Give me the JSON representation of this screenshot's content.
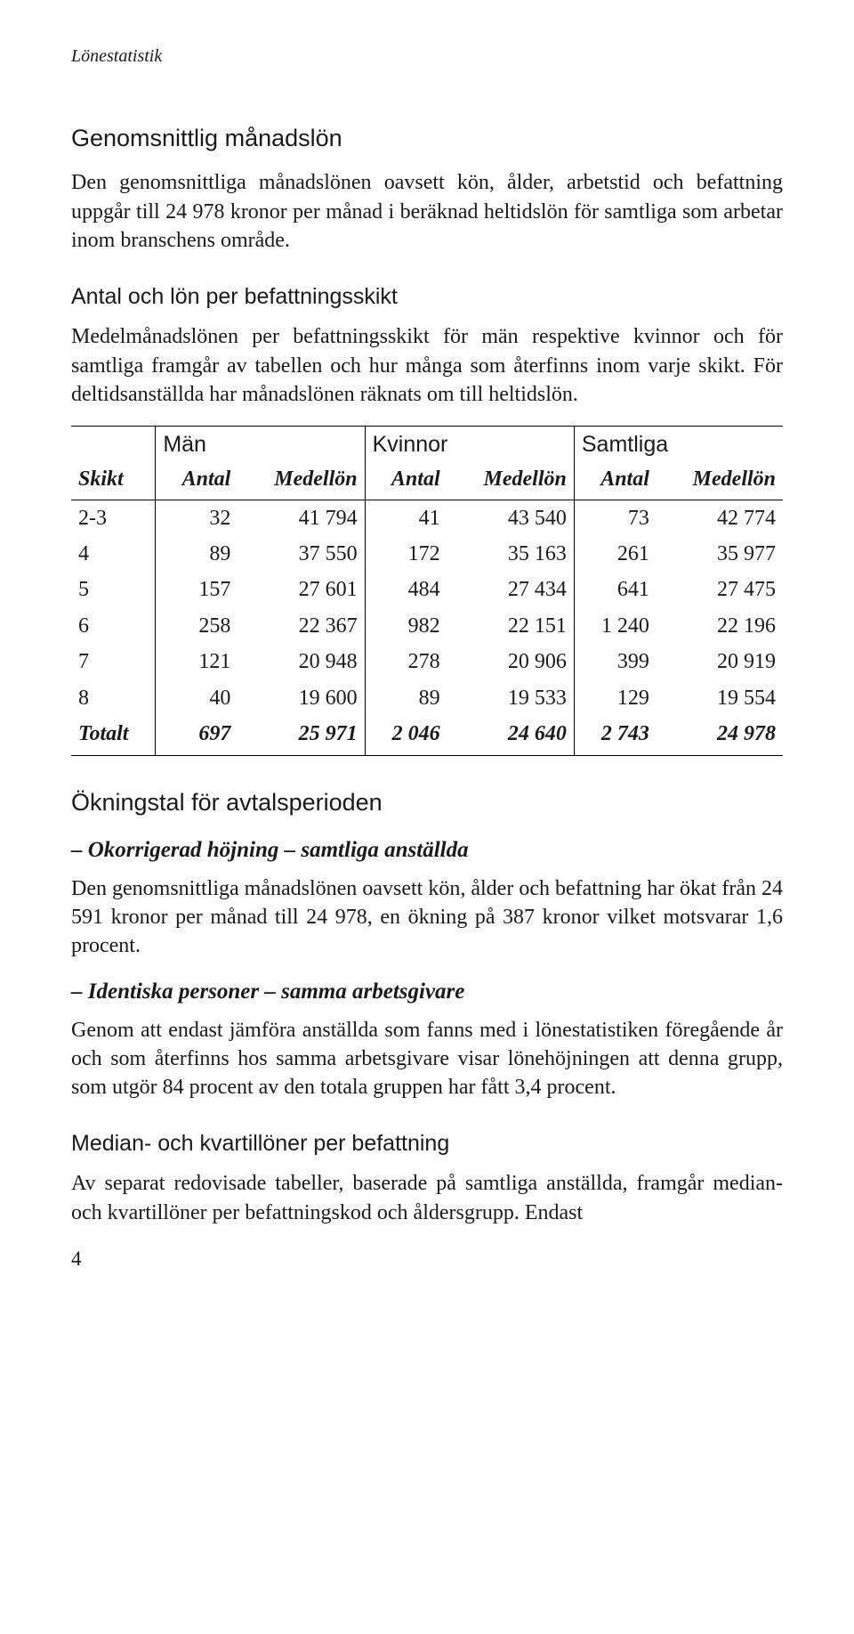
{
  "header": {
    "label": "Lönestatistik"
  },
  "sections": {
    "avg": {
      "title": "Genomsnittlig månadslön",
      "para": "Den genomsnittliga månadslönen oavsett kön, ålder, arbetstid och befattning uppgår till 24 978 kronor per månad i beräknad heltidslön för samtliga som arbetar inom branschens område."
    },
    "antal": {
      "title": "Antal och lön per befattningsskikt",
      "para": "Medelmånadslönen per befattningsskikt för män respektive kvinnor och för samtliga framgår av tabellen och hur många som återfinns inom varje skikt. För deltidsanställda har månadslönen räknats om till heltidslön."
    },
    "okning": {
      "title": "Ökningstal för avtalsperioden",
      "sub1_title": "– Okorrigerad höjning – samtliga anställda",
      "sub1_para": "Den genomsnittliga månadslönen oavsett kön, ålder och befattning har ökat från 24 591 kronor per månad till 24 978, en ökning på 387 kronor vilket motsvarar 1,6 procent.",
      "sub2_title": "– Identiska personer – samma arbetsgivare",
      "sub2_para": "Genom att endast jämföra anställda som fanns med i lönestatistiken föregående år och som återfinns hos samma arbetsgivare visar lönehöjningen att denna grupp, som utgör 84 procent av den totala gruppen har fått 3,4 procent."
    },
    "median": {
      "title": "Median- och kvartillöner per befattning",
      "para": "Av separat redovisade tabeller, baserade på samtliga anställda, framgår median- och kvartillöner per befattningskod och åldersgrupp. Endast"
    }
  },
  "table": {
    "groups": {
      "g1": "Män",
      "g2": "Kvinnor",
      "g3": "Samtliga"
    },
    "cols": {
      "skikt": "Skikt",
      "antal": "Antal",
      "medellon": "Medellön"
    },
    "rows": [
      {
        "skikt": "2-3",
        "m_antal": "32",
        "m_med": "41 794",
        "k_antal": "41",
        "k_med": "43 540",
        "s_antal": "73",
        "s_med": "42 774"
      },
      {
        "skikt": "4",
        "m_antal": "89",
        "m_med": "37 550",
        "k_antal": "172",
        "k_med": "35 163",
        "s_antal": "261",
        "s_med": "35 977"
      },
      {
        "skikt": "5",
        "m_antal": "157",
        "m_med": "27 601",
        "k_antal": "484",
        "k_med": "27 434",
        "s_antal": "641",
        "s_med": "27 475"
      },
      {
        "skikt": "6",
        "m_antal": "258",
        "m_med": "22 367",
        "k_antal": "982",
        "k_med": "22 151",
        "s_antal": "1 240",
        "s_med": "22 196"
      },
      {
        "skikt": "7",
        "m_antal": "121",
        "m_med": "20 948",
        "k_antal": "278",
        "k_med": "20 906",
        "s_antal": "399",
        "s_med": "20 919"
      },
      {
        "skikt": "8",
        "m_antal": "40",
        "m_med": "19 600",
        "k_antal": "89",
        "k_med": "19 533",
        "s_antal": "129",
        "s_med": "19 554"
      },
      {
        "skikt": "Totalt",
        "m_antal": "697",
        "m_med": "25 971",
        "k_antal": "2 046",
        "k_med": "24 640",
        "s_antal": "2 743",
        "s_med": "24 978"
      }
    ]
  },
  "page": {
    "num": "4"
  }
}
